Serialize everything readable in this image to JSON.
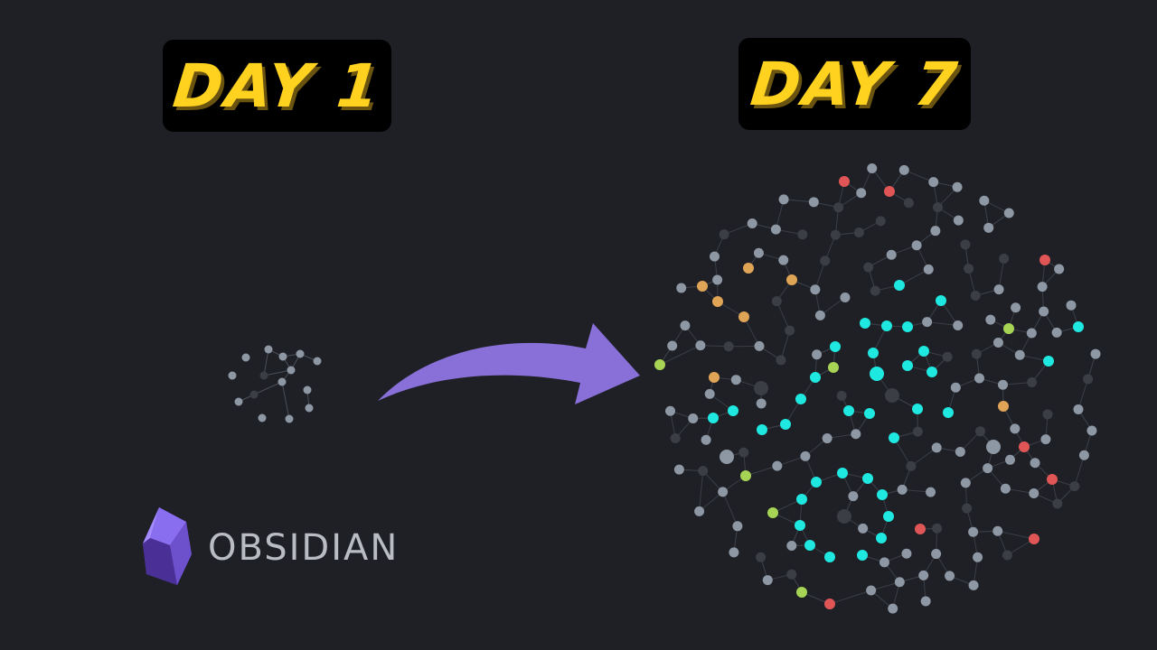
{
  "left_label": "DAY 1",
  "right_label": "DAY 7",
  "brand": {
    "name": "OBSIDIAN",
    "icon": "obsidian-crystal-icon"
  },
  "colors": {
    "background": "#1e2026",
    "label_text": "#ffd21f",
    "arrow": "#8870d8",
    "node_grey": "#8e97a4",
    "node_dark": "#3b3e45",
    "node_cyan": "#1ee8e0",
    "node_red": "#e05656",
    "node_orange": "#e0a456",
    "node_green": "#a8d455"
  }
}
